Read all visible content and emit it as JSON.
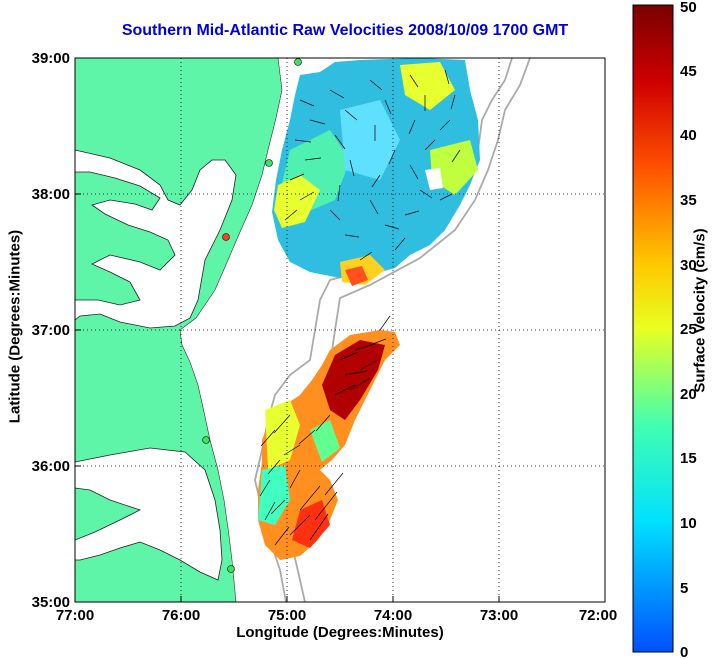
{
  "title": "Southern Mid-Atlantic Raw Velocities 2008/10/09 1700 GMT",
  "chart_data": {
    "type": "heatmap",
    "xlabel": "Longitude (Degrees:Minutes)",
    "ylabel": "Latitude (Degrees:Minutes)",
    "x_ticks": [
      "77:00",
      "76:00",
      "75:00",
      "74:00",
      "73:00",
      "72:00"
    ],
    "y_ticks": [
      "39:00",
      "38:00",
      "37:00",
      "36:00",
      "35:00"
    ],
    "xlim": [
      -77,
      -72
    ],
    "ylim": [
      35,
      39
    ],
    "grid": true,
    "colorbar": {
      "label": "Surface Velocity (cm/s)",
      "min": 0,
      "max": 50,
      "ticks": [
        "0",
        "5",
        "10",
        "15",
        "20",
        "25",
        "30",
        "35",
        "40",
        "45",
        "50"
      ]
    },
    "colors": {
      "land": "#5ff5a8",
      "background": "#ffffff",
      "arrows": "#000000",
      "title": "#0000e0"
    }
  }
}
